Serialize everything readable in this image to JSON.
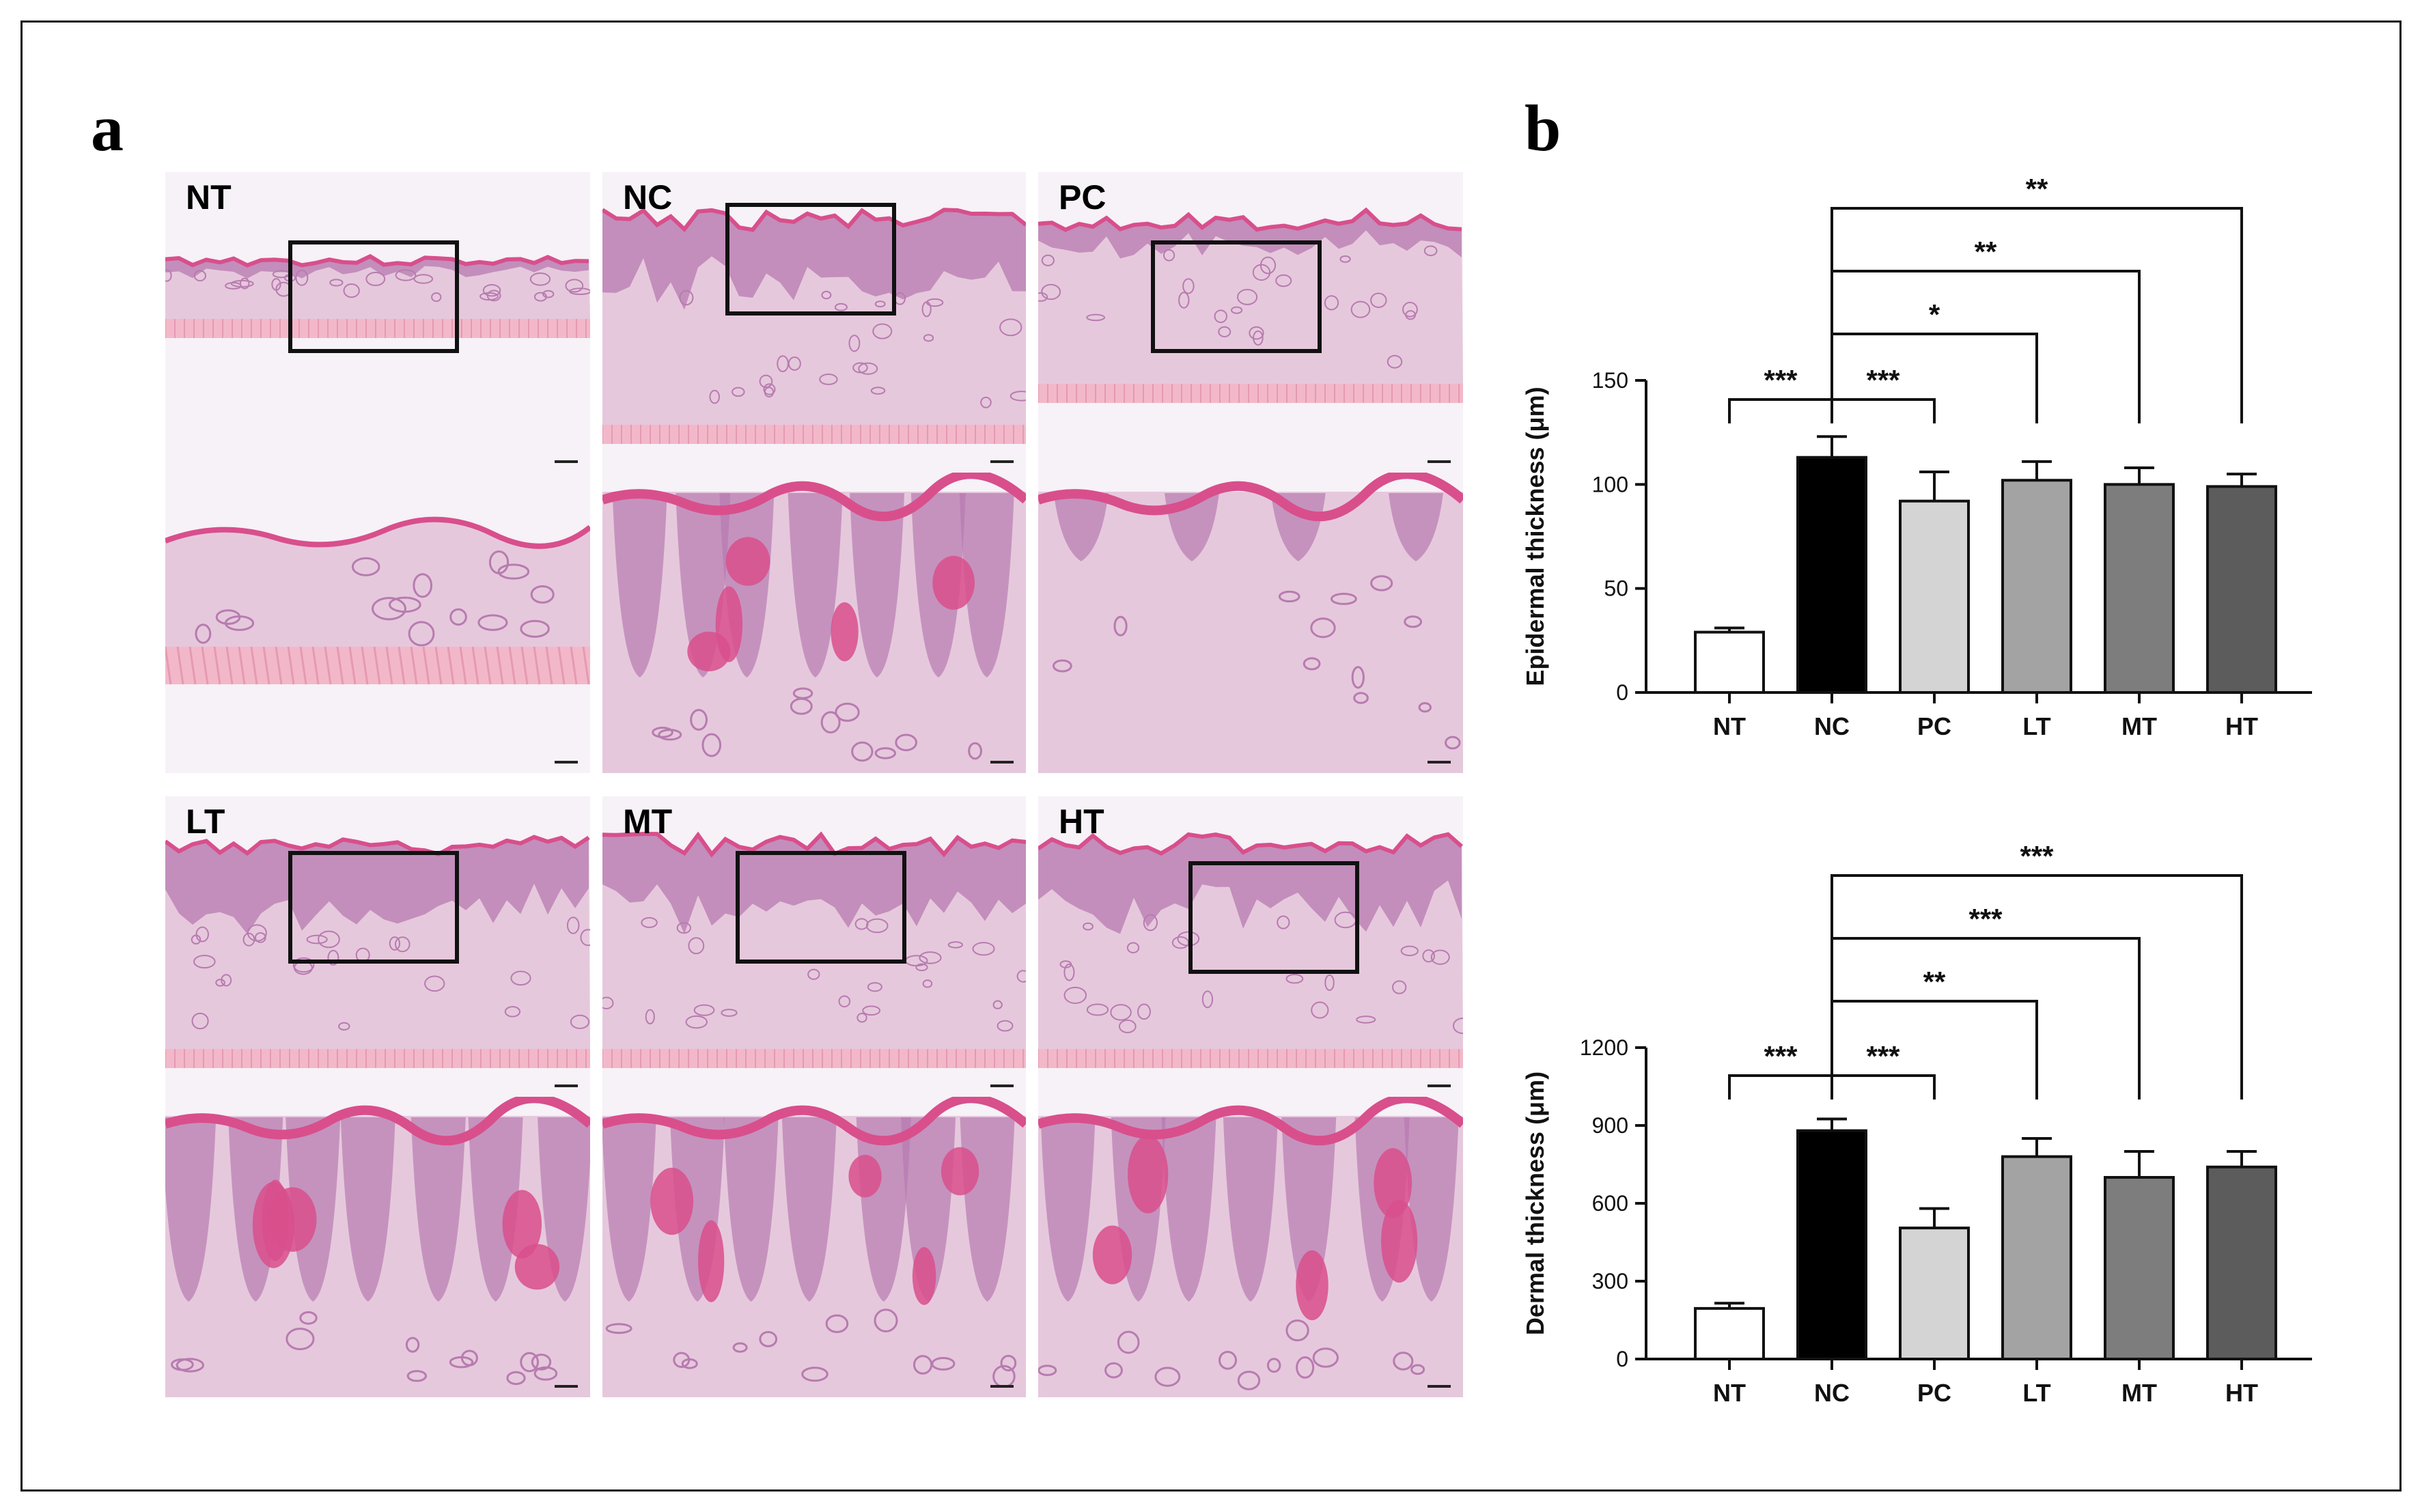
{
  "figure": {
    "panel_a_letter": "a",
    "panel_b_letter": "b"
  },
  "histology": {
    "panels": [
      {
        "label": "NT",
        "style": "thin"
      },
      {
        "label": "NC",
        "style": "thick"
      },
      {
        "label": "PC",
        "style": "medium"
      },
      {
        "label": "LT",
        "style": "thick"
      },
      {
        "label": "MT",
        "style": "thick"
      },
      {
        "label": "HT",
        "style": "thick"
      }
    ],
    "colors": {
      "background": "#f6f2f7",
      "epidermis": "#d84f8c",
      "dermis": "#e6c8dc",
      "fiber": "#b77bb0",
      "muscle": "#f2b8c9"
    }
  },
  "chart_data": [
    {
      "type": "bar",
      "categories": [
        "NT",
        "NC",
        "PC",
        "LT",
        "MT",
        "HT"
      ],
      "values": [
        29,
        113,
        92,
        102,
        100,
        99
      ],
      "errors": [
        2,
        10,
        14,
        9,
        8,
        6
      ],
      "ylabel": "Epidermal thickness (μm)",
      "ylim": [
        0,
        150
      ],
      "yticks": [
        0,
        50,
        100,
        150
      ],
      "bar_colors": [
        "#ffffff",
        "#000000",
        "#d4d4d4",
        "#a3a3a3",
        "#7d7d7d",
        "#5c5c5c"
      ],
      "significance": [
        {
          "from": "NT",
          "to": "NC",
          "label": "***"
        },
        {
          "from": "NC",
          "to": "PC",
          "label": "***"
        },
        {
          "from": "NC",
          "to": "LT",
          "label": "*"
        },
        {
          "from": "NC",
          "to": "MT",
          "label": "**"
        },
        {
          "from": "NC",
          "to": "HT",
          "label": "**"
        }
      ]
    },
    {
      "type": "bar",
      "categories": [
        "NT",
        "NC",
        "PC",
        "LT",
        "MT",
        "HT"
      ],
      "values": [
        195,
        880,
        505,
        780,
        700,
        740
      ],
      "errors": [
        20,
        45,
        75,
        70,
        100,
        60
      ],
      "ylabel": "Dermal thickness (μm)",
      "ylim": [
        0,
        1200
      ],
      "yticks": [
        0,
        300,
        600,
        900,
        1200
      ],
      "bar_colors": [
        "#ffffff",
        "#000000",
        "#d4d4d4",
        "#a3a3a3",
        "#7d7d7d",
        "#5c5c5c"
      ],
      "significance": [
        {
          "from": "NT",
          "to": "NC",
          "label": "***"
        },
        {
          "from": "NC",
          "to": "PC",
          "label": "***"
        },
        {
          "from": "NC",
          "to": "LT",
          "label": "**"
        },
        {
          "from": "NC",
          "to": "MT",
          "label": "***"
        },
        {
          "from": "NC",
          "to": "HT",
          "label": "***"
        }
      ]
    }
  ]
}
